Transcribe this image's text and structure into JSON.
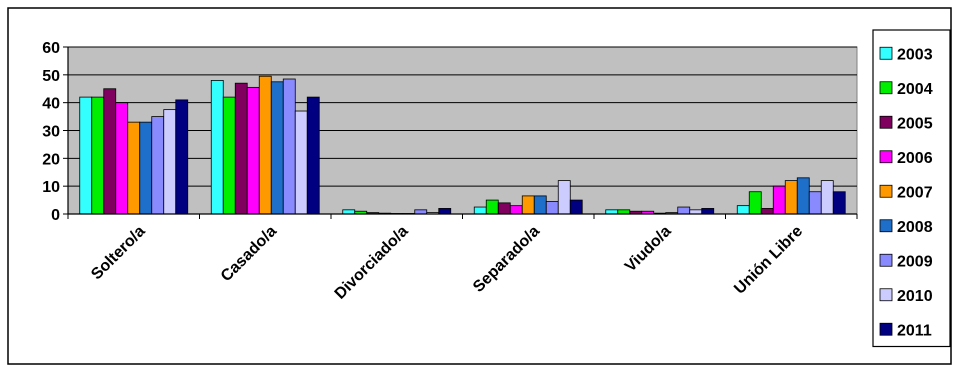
{
  "chart_data": {
    "type": "bar",
    "title": "",
    "xlabel": "",
    "ylabel": "",
    "ylim": [
      0,
      60
    ],
    "yticks": [
      0,
      10,
      20,
      30,
      40,
      50,
      60
    ],
    "grid": true,
    "legend_position": "right",
    "plot_background": "#c0c0c0",
    "categories": [
      "Soltero/a",
      "Casado/a",
      "Divorciado/a",
      "Separado/a",
      "Viudo/a",
      "Unión Libre"
    ],
    "series": [
      {
        "name": "2003",
        "color": "#33ffff",
        "values": [
          42,
          48,
          1.5,
          2.5,
          1.5,
          3
        ]
      },
      {
        "name": "2004",
        "color": "#00ee00",
        "values": [
          42,
          42,
          1,
          5,
          1.5,
          8
        ]
      },
      {
        "name": "2005",
        "color": "#800060",
        "values": [
          45,
          47,
          0.5,
          4,
          1,
          2
        ]
      },
      {
        "name": "2006",
        "color": "#ff00ff",
        "values": [
          40,
          45.5,
          0.3,
          3,
          1,
          10
        ]
      },
      {
        "name": "2007",
        "color": "#ff9900",
        "values": [
          33,
          49.5,
          0.2,
          6.5,
          0.3,
          12
        ]
      },
      {
        "name": "2008",
        "color": "#1e6fc9",
        "values": [
          33,
          47.5,
          0.2,
          6.5,
          0.5,
          13
        ]
      },
      {
        "name": "2009",
        "color": "#8a8aff",
        "values": [
          35,
          48.5,
          1.5,
          4.5,
          2.5,
          8
        ]
      },
      {
        "name": "2010",
        "color": "#ccccff",
        "values": [
          37.5,
          37,
          0.5,
          12,
          1.5,
          12
        ]
      },
      {
        "name": "2011",
        "color": "#000080",
        "values": [
          41,
          42,
          2,
          5,
          2,
          8
        ]
      }
    ]
  }
}
